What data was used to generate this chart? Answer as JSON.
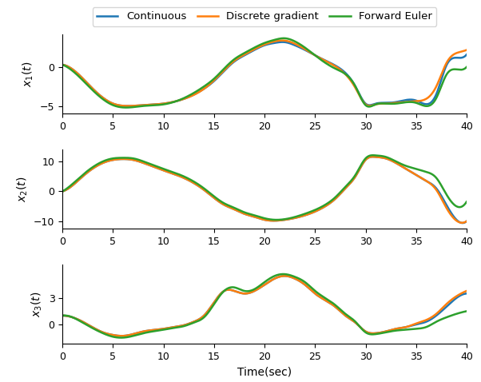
{
  "xlabel": "Time(sec)",
  "ylabel1": "$x_1(t)$",
  "ylabel2": "$x_2(t)$",
  "ylabel3": "$x_3(t)$",
  "colors": {
    "continuous": "#1f77b4",
    "discrete_gradient": "#ff7f0e",
    "forward_euler": "#2ca02c"
  },
  "legend_labels": [
    "Continuous",
    "Discrete gradient",
    "Forward Euler"
  ],
  "linewidth": 1.8,
  "figsize": [
    6.02,
    4.78
  ],
  "dpi": 100,
  "x1_t": [
    0,
    1,
    3,
    5,
    6.5,
    8,
    10,
    12,
    14,
    15,
    16,
    17,
    18,
    19,
    20,
    21,
    22,
    23,
    24,
    25,
    27,
    29,
    30,
    31,
    32,
    33,
    35,
    37,
    38,
    39,
    40
  ],
  "x1_cont": [
    0.3,
    -0.3,
    -2.8,
    -4.7,
    -5.0,
    -4.9,
    -4.7,
    -4.1,
    -2.8,
    -1.8,
    -0.5,
    0.7,
    1.5,
    2.2,
    2.8,
    3.1,
    3.2,
    2.8,
    2.2,
    1.5,
    0.2,
    -2.5,
    -4.7,
    -4.7,
    -4.6,
    -4.5,
    -4.3,
    -3.5,
    0.2,
    1.2,
    1.6
  ],
  "x1_dg": [
    0.3,
    -0.3,
    -2.8,
    -4.7,
    -5.0,
    -4.9,
    -4.7,
    -4.1,
    -2.8,
    -1.7,
    -0.4,
    0.8,
    1.6,
    2.3,
    2.9,
    3.3,
    3.4,
    3.0,
    2.3,
    1.5,
    0.1,
    -2.7,
    -4.8,
    -4.8,
    -4.7,
    -4.6,
    -4.4,
    -2.5,
    0.5,
    1.8,
    2.2
  ],
  "x1_fe": [
    0.3,
    -0.5,
    -3.0,
    -4.9,
    -5.2,
    -5.0,
    -4.8,
    -4.0,
    -2.5,
    -1.5,
    -0.2,
    1.0,
    1.8,
    2.5,
    3.1,
    3.5,
    3.7,
    3.3,
    2.5,
    1.5,
    -0.2,
    -2.5,
    -4.9,
    -4.8,
    -4.7,
    -4.7,
    -4.6,
    -4.0,
    -1.0,
    -0.3,
    0.0
  ],
  "x2_t": [
    0,
    1,
    2,
    4,
    5,
    6,
    7,
    8,
    10,
    12,
    14,
    16,
    17,
    18,
    19,
    20,
    21,
    22,
    24,
    26,
    27,
    28,
    29,
    30,
    31,
    32,
    33,
    34,
    35,
    36,
    37,
    38,
    39,
    40
  ],
  "x2_cont": [
    0.0,
    2.0,
    5.0,
    9.5,
    10.5,
    10.8,
    10.5,
    9.5,
    7.0,
    4.5,
    0.5,
    -4.5,
    -6.0,
    -7.5,
    -8.5,
    -9.5,
    -9.8,
    -9.5,
    -8.0,
    -5.0,
    -2.5,
    1.0,
    5.0,
    10.5,
    11.5,
    11.0,
    9.5,
    7.5,
    5.5,
    3.5,
    1.0,
    -4.5,
    -9.5,
    -10.0
  ],
  "x2_dg": [
    0.0,
    2.0,
    5.0,
    9.5,
    10.5,
    10.8,
    10.5,
    9.5,
    7.0,
    4.5,
    0.5,
    -4.5,
    -6.0,
    -7.5,
    -8.5,
    -9.5,
    -9.8,
    -9.5,
    -8.0,
    -5.0,
    -2.5,
    1.0,
    5.0,
    10.5,
    11.5,
    11.0,
    9.5,
    7.5,
    5.5,
    3.5,
    0.5,
    -5.5,
    -9.8,
    -10.0
  ],
  "x2_fe": [
    0.0,
    2.5,
    5.5,
    10.0,
    11.0,
    11.2,
    11.0,
    10.0,
    7.5,
    5.0,
    1.0,
    -4.0,
    -5.5,
    -7.0,
    -8.0,
    -9.0,
    -9.5,
    -9.3,
    -7.5,
    -4.5,
    -2.0,
    1.5,
    5.5,
    11.0,
    12.0,
    11.5,
    10.0,
    8.5,
    7.5,
    6.5,
    4.5,
    -1.0,
    -5.0,
    -3.5
  ],
  "x3_t": [
    0,
    1,
    2,
    4,
    5,
    6,
    8,
    10,
    11,
    12,
    13,
    14,
    15,
    16,
    17,
    18,
    19,
    20,
    21,
    22,
    23,
    24,
    25,
    27,
    28,
    29,
    30,
    31,
    32,
    33,
    34,
    35,
    36,
    37,
    38,
    39,
    40
  ],
  "x3_cont": [
    1.0,
    0.8,
    0.3,
    -0.9,
    -1.2,
    -1.3,
    -0.8,
    -0.5,
    -0.3,
    -0.1,
    0.3,
    1.0,
    2.5,
    3.8,
    3.8,
    3.5,
    3.8,
    4.5,
    5.2,
    5.5,
    5.2,
    4.5,
    3.5,
    2.0,
    1.0,
    0.2,
    -0.8,
    -1.0,
    -0.8,
    -0.5,
    -0.3,
    0.0,
    0.3,
    1.0,
    2.0,
    3.0,
    3.5
  ],
  "x3_dg": [
    1.0,
    0.8,
    0.3,
    -0.9,
    -1.2,
    -1.3,
    -0.8,
    -0.5,
    -0.3,
    -0.1,
    0.3,
    1.0,
    2.5,
    3.8,
    3.8,
    3.5,
    3.8,
    4.5,
    5.2,
    5.5,
    5.2,
    4.5,
    3.5,
    2.0,
    1.0,
    0.2,
    -0.8,
    -1.0,
    -0.8,
    -0.5,
    -0.3,
    0.1,
    0.5,
    1.2,
    2.3,
    3.2,
    3.8
  ],
  "x3_fe": [
    1.0,
    0.8,
    0.2,
    -1.0,
    -1.4,
    -1.5,
    -1.0,
    -0.6,
    -0.4,
    -0.2,
    0.2,
    0.8,
    2.3,
    3.8,
    4.2,
    3.8,
    4.0,
    4.8,
    5.5,
    5.7,
    5.4,
    4.8,
    3.8,
    2.2,
    1.2,
    0.3,
    -0.9,
    -1.1,
    -0.9,
    -0.7,
    -0.6,
    -0.5,
    -0.3,
    0.3,
    0.8,
    1.2,
    1.5
  ]
}
